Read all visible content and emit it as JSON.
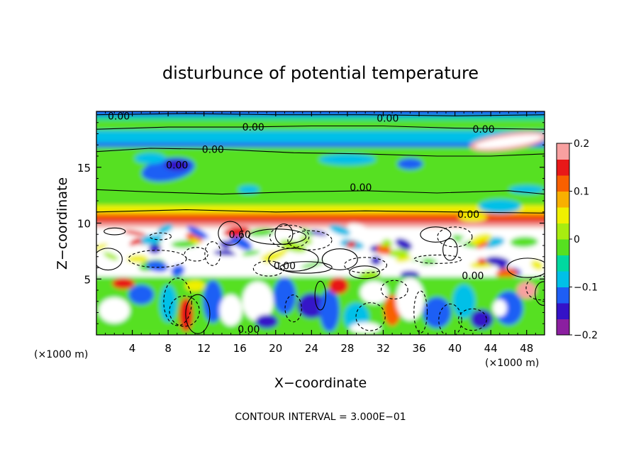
{
  "chart_data": {
    "type": "heatmap",
    "title": "disturbunce of potential temperature",
    "xlabel": "X−coordinate",
    "ylabel": "Z−coordinate",
    "x_unit_left": "(×1000 m)",
    "x_unit_right": "(×1000 m)",
    "footer": "CONTOUR INTERVAL = 3.000E−01",
    "xlim": [
      0,
      50
    ],
    "ylim": [
      0,
      20
    ],
    "x_ticks": [
      4,
      8,
      12,
      16,
      20,
      24,
      28,
      32,
      36,
      40,
      44,
      48
    ],
    "x_tick_labels": [
      "4",
      "8",
      "12",
      "16",
      "20",
      "24",
      "28",
      "32",
      "36",
      "40",
      "44",
      "48"
    ],
    "y_ticks": [
      5,
      10,
      15
    ],
    "y_tick_labels": [
      "5",
      "10",
      "15"
    ],
    "colorbar": {
      "range": [
        -0.2,
        0.2
      ],
      "tick_values": [
        0.2,
        0.1,
        0,
        -0.1,
        -0.2
      ],
      "tick_labels": [
        "0.2",
        "0.1",
        "0",
        "−0.1",
        "−0.2"
      ],
      "colors": [
        "#8b1fa0",
        "#3412c8",
        "#1e5ef5",
        "#00c0e8",
        "#00d8a0",
        "#56e020",
        "#a8ec10",
        "#f0f000",
        "#f8b000",
        "#f86000",
        "#e81818",
        "#f8a0a0"
      ]
    },
    "contour_labels": [
      {
        "text": "0.00",
        "x": 2.5,
        "y": 19.6
      },
      {
        "text": "0.00",
        "x": 17.5,
        "y": 18.6
      },
      {
        "text": "0.00",
        "x": 32.5,
        "y": 19.4
      },
      {
        "text": "0.00",
        "x": 43.2,
        "y": 18.4
      },
      {
        "text": "0.00",
        "x": 13.0,
        "y": 16.6
      },
      {
        "text": "0.00",
        "x": 9.0,
        "y": 15.2
      },
      {
        "text": "0.00",
        "x": 29.5,
        "y": 13.2
      },
      {
        "text": "0.00",
        "x": 41.5,
        "y": 10.8
      },
      {
        "text": "0.60",
        "x": 16.0,
        "y": 9.0
      },
      {
        "text": "0.00",
        "x": 21.0,
        "y": 6.2
      },
      {
        "text": "0.00",
        "x": 42.0,
        "y": 5.3
      },
      {
        "text": "0.00",
        "x": 17.0,
        "y": 0.5
      }
    ]
  }
}
